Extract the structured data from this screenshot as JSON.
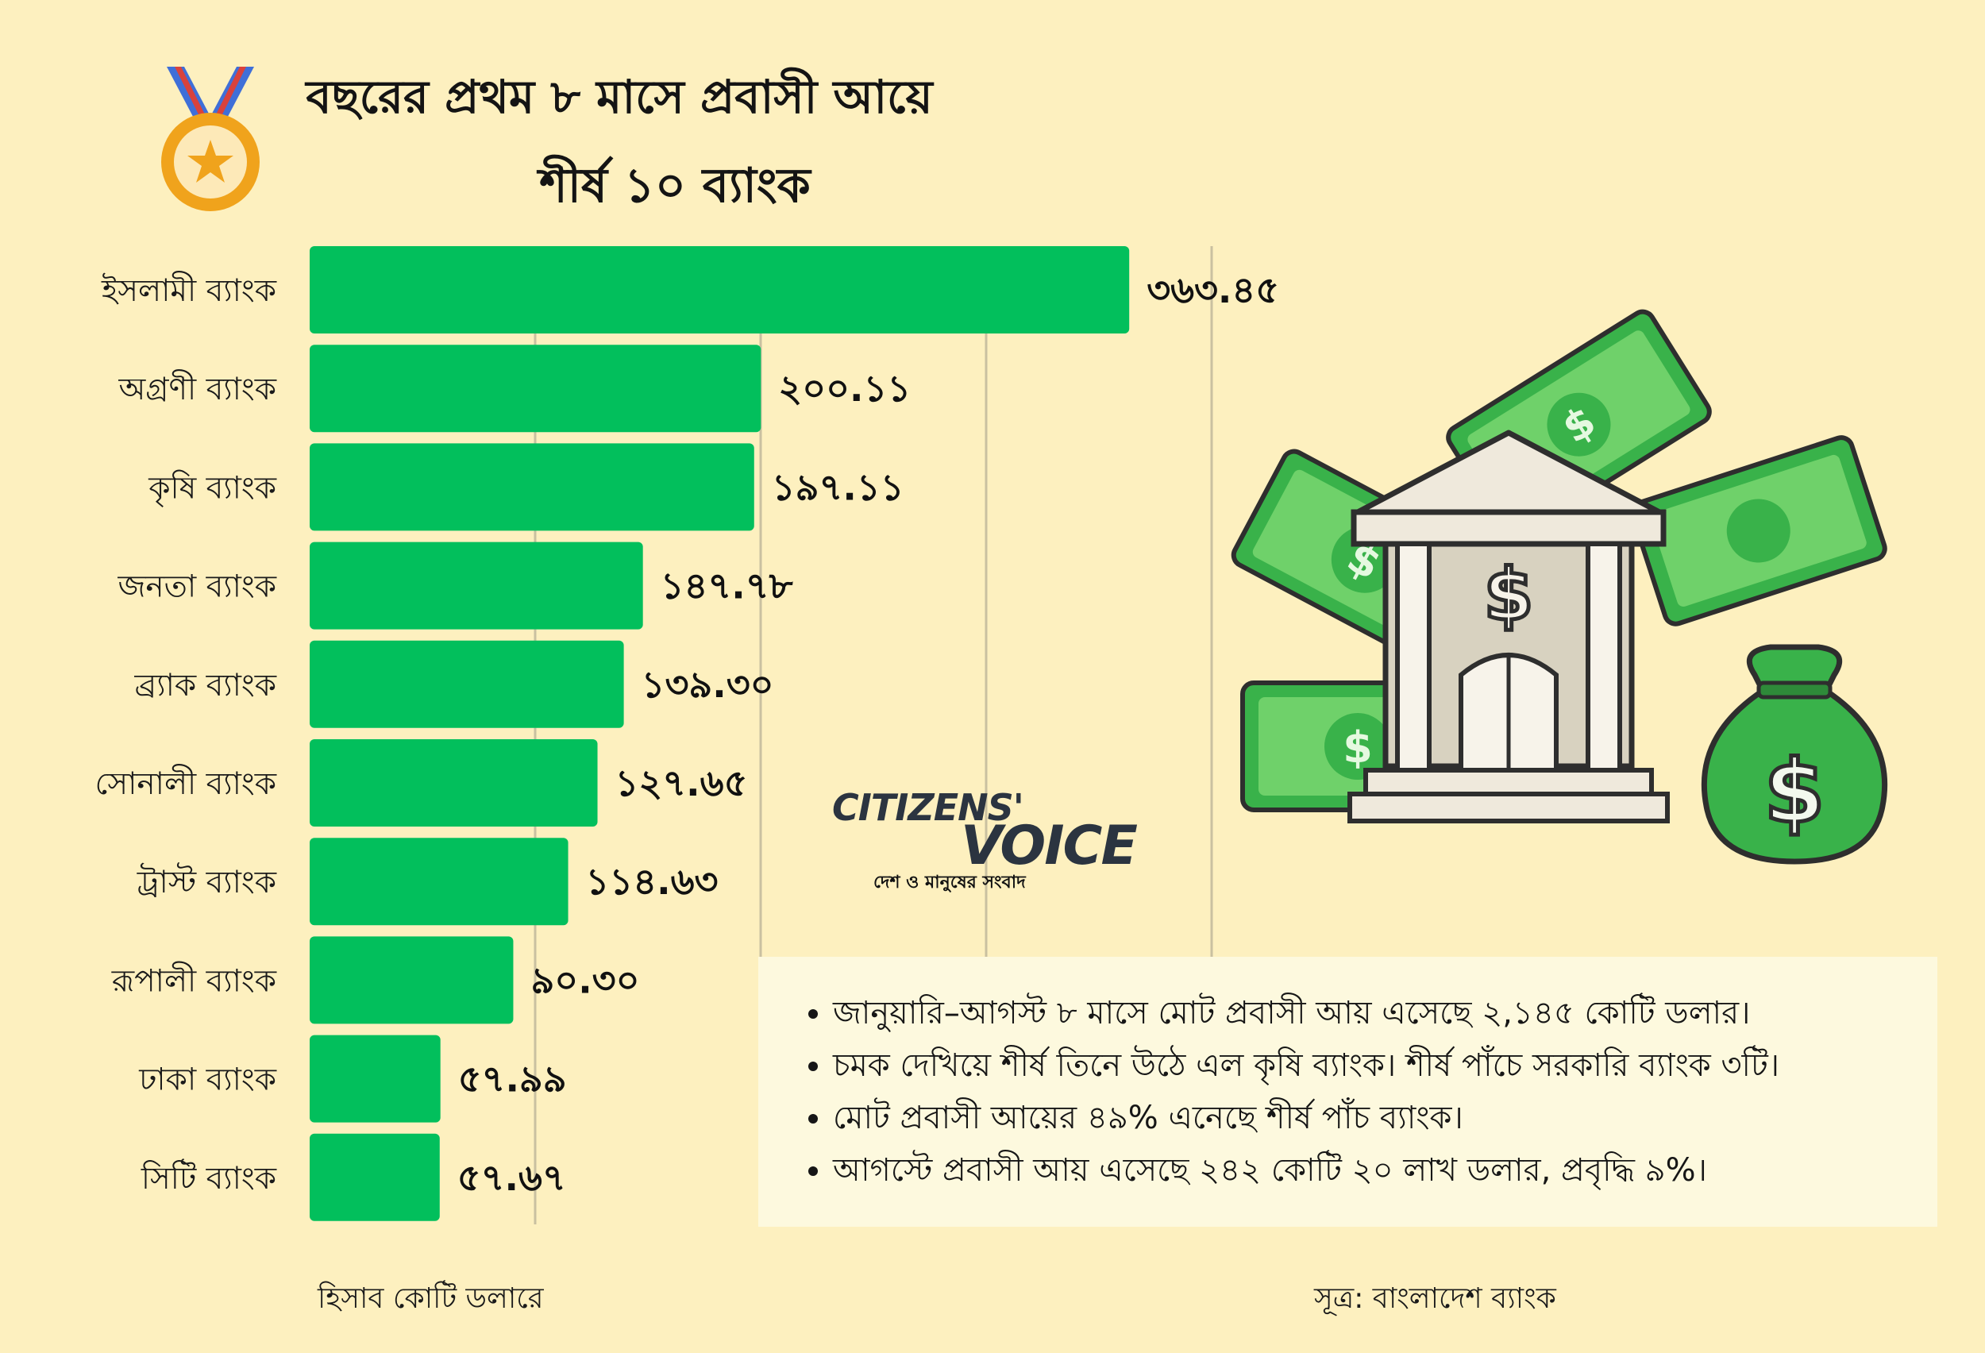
{
  "title_line1": "বছরের প্রথম ৮ মাসে প্রবাসী আয়ে",
  "title_line2": "শীর্ষ ১০ ব্যাংক",
  "colors": {
    "background": "#fdf0bf",
    "bar": "#02bf5c",
    "gridline": "#c9c0a0",
    "notes_box": "#fdf9de",
    "money_green": "#39b24a",
    "bank_building": "#d8d2c0"
  },
  "chart_data": {
    "type": "bar",
    "orientation": "horizontal",
    "categories": [
      "ইসলামী ব্যাংক",
      "অগ্রণী ব্যাংক",
      "কৃষি ব্যাংক",
      "জনতা ব্যাংক",
      "ব্র্যাক ব্যাংক",
      "সোনালী ব্যাংক",
      "ট্রাস্ট ব্যাংক",
      "রূপালী ব্যাংক",
      "ঢাকা ব্যাংক",
      "সিটি ব্যাংক"
    ],
    "values": [
      363.45,
      200.11,
      197.11,
      147.78,
      139.3,
      127.65,
      114.63,
      90.3,
      57.99,
      57.67
    ],
    "value_labels": [
      "৩৬৩.৪৫",
      "২০০.১১",
      "১৯৭.১১",
      "১৪৭.৭৮",
      "১৩৯.৩০",
      "১২৭.৬৫",
      "১১৪.৬৩",
      "৯০.৩০",
      "৫৭.৯৯",
      "৫৭.৬৭"
    ],
    "xlim": [
      0,
      400
    ],
    "grid": true,
    "gridlines": [
      100,
      200,
      300,
      400
    ]
  },
  "logo": {
    "line1": "CITIZENS'",
    "line2": "VOICE",
    "tagline": "দেশ ও মানুষের সংবাদ"
  },
  "notes": [
    "জানুয়ারি–আগস্ট ৮ মাসে মোট প্রবাসী আয় এসেছে ২,১৪৫ কোটি ডলার।",
    "চমক দেখিয়ে শীর্ষ তিনে উঠে এল কৃষি ব্যাংক। শীর্ষ পাঁচে সরকারি ব্যাংক ৩টি।",
    "মোট প্রবাসী আয়ের ৪৯% এনেছে শীর্ষ পাঁচ ব্যাংক।",
    "আগস্টে প্রবাসী আয় এসেছে ২৪২ কোটি ২০ লাখ ডলার, প্রবৃদ্ধি ৯%।"
  ],
  "footer": {
    "unit": "হিসাব কোটি ডলারে",
    "source": "সূত্র: বাংলাদেশ ব্যাংক"
  }
}
